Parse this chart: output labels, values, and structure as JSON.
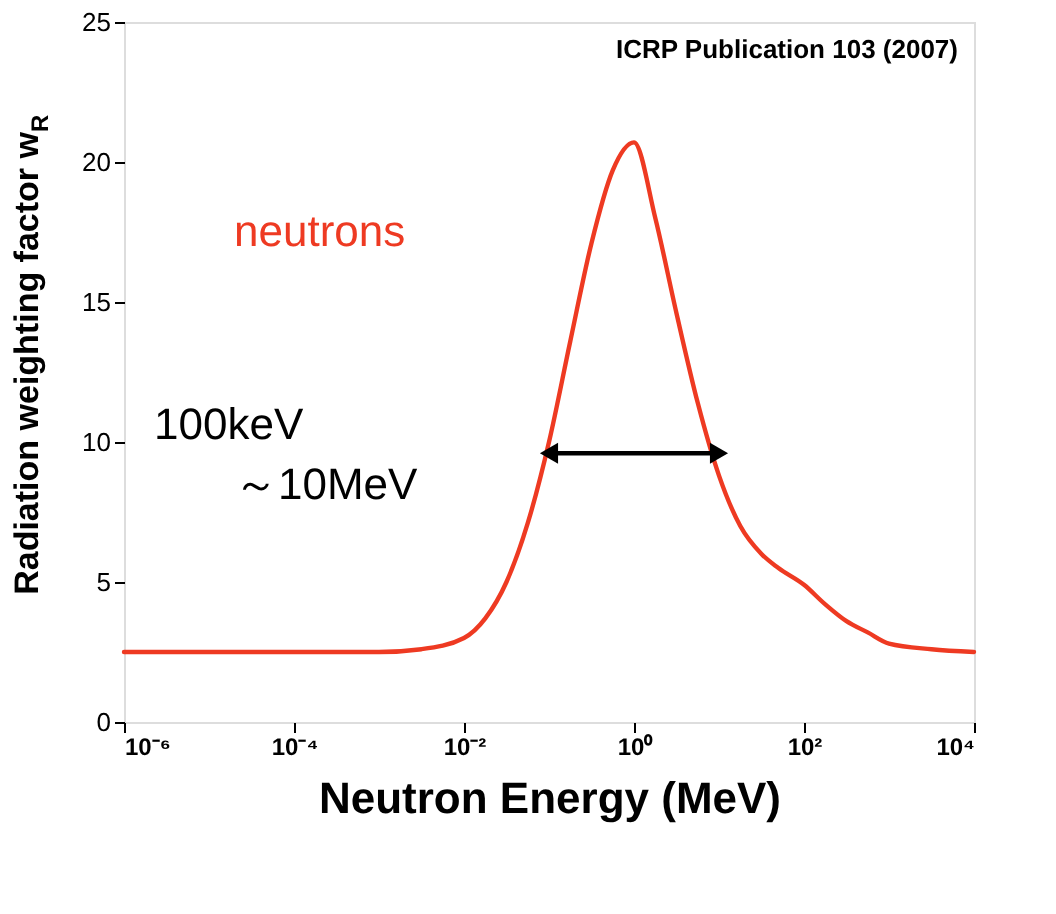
{
  "chart_data": {
    "type": "line",
    "xlabel": "Neutron Energy (MeV)",
    "ylabel": "Radiation weighting factor w$_{R}$",
    "log": "x",
    "xlim": [
      1e-06,
      10000
    ],
    "ylim": [
      0,
      25
    ],
    "xticks": [
      {
        "value": 1e-06,
        "label": "10⁻⁶"
      },
      {
        "value": 0.0001,
        "label": "10⁻⁴"
      },
      {
        "value": 0.01,
        "label": "10⁻²"
      },
      {
        "value": 1,
        "label": "10⁰"
      },
      {
        "value": 100,
        "label": "10²"
      },
      {
        "value": 10000,
        "label": "10⁴"
      }
    ],
    "yticks": [
      0,
      5,
      10,
      15,
      20,
      25
    ],
    "grid": false,
    "series": [
      {
        "name": "neutrons",
        "color": "#ee3a22",
        "x": [
          1e-06,
          0.001,
          0.00316,
          0.01,
          0.0178,
          0.0316,
          0.0562,
          0.1,
          0.178,
          0.316,
          0.562,
          1,
          1.78,
          3.16,
          5.62,
          10,
          17.8,
          31.6,
          50,
          100,
          178,
          316,
          562,
          1000,
          3160,
          10000
        ],
        "values": [
          2.5,
          2.5,
          2.6,
          3.0,
          3.7,
          5.0,
          7.1,
          10.0,
          13.6,
          17.1,
          19.7,
          20.7,
          18.0,
          14.6,
          11.4,
          8.8,
          7.0,
          6.0,
          5.5,
          4.9,
          4.2,
          3.6,
          3.2,
          2.8,
          2.6,
          2.5
        ]
      },
      {
        "type": "line",
        "color": "#000000",
        "marker": "triangle",
        "x": [
          0.1,
          10
        ],
        "values": [
          9.6,
          9.6
        ]
      }
    ],
    "annotations": [
      "ICRP Publication 103 (2007)",
      "100keV\n～10MeV"
    ]
  }
}
